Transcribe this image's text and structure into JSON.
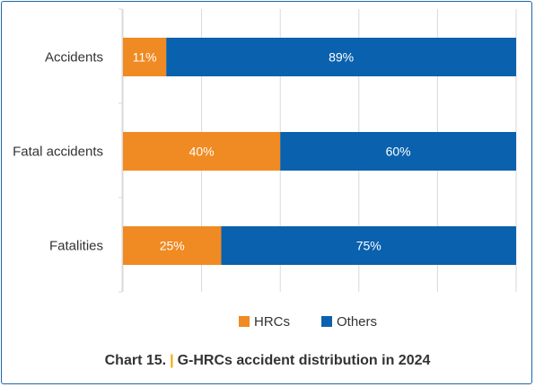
{
  "chart_data": {
    "type": "bar",
    "orientation": "horizontal",
    "stacked": true,
    "categories": [
      "Accidents",
      "Fatal accidents",
      "Fatalities"
    ],
    "series": [
      {
        "name": "HRCs",
        "values": [
          11,
          40,
          25
        ],
        "labels": [
          "11%",
          "40%",
          "25%"
        ],
        "color": "#f08a22"
      },
      {
        "name": "Others",
        "values": [
          89,
          60,
          75
        ],
        "labels": [
          "89%",
          "60%",
          "75%"
        ],
        "color": "#0a61ad"
      }
    ],
    "xlim": [
      0,
      100
    ],
    "grid": true,
    "legend": "bottom"
  },
  "caption": {
    "number": "Chart 15.",
    "title": "G-HRCs accident distribution in 2024"
  }
}
